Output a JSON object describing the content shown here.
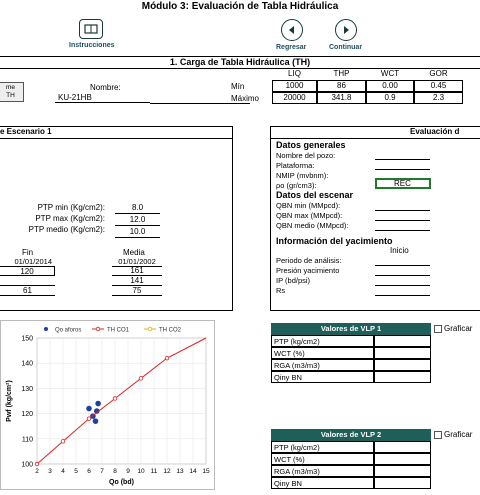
{
  "title": "Módulo 3: Evaluación de Tabla Hidráulica",
  "nav": {
    "instructions": "Instrucciones",
    "back": "Regresar",
    "next": "Continuar"
  },
  "section1": {
    "header": "1.  Carga de Tabla Hidráulica (TH)",
    "side_btn_line1": "me",
    "side_btn_line2": "TH",
    "name_label": "Nombre:",
    "name_value": "KU-21HB",
    "cols": [
      "LIQ",
      "THP",
      "WCT",
      "GOR"
    ],
    "rows": [
      {
        "label": "Mín",
        "values": [
          "1000",
          "86",
          "0.00",
          "0.45"
        ]
      },
      {
        "label": "Máximo",
        "values": [
          "20000",
          "341.8",
          "0.9",
          "2.3"
        ]
      }
    ]
  },
  "left_panel": {
    "title": "e Escenario 1",
    "ptp": [
      {
        "label": "PTP min (Kg/cm2):",
        "value": "8.0"
      },
      {
        "label": "PTP max (Kg/cm2):",
        "value": "12.0"
      },
      {
        "label": "PTP medio (Kg/cm2):",
        "value": "10.0"
      }
    ],
    "fin_label": "Fin",
    "media_label": "Media",
    "fin_date": "01/01/2014",
    "media_date": "01/01/2002",
    "fin_values": [
      "120",
      "",
      "61"
    ],
    "media_values": [
      "161",
      "141",
      "75"
    ]
  },
  "right_panel": {
    "title": "Evaluación d",
    "gen_title": "Datos generales",
    "gen_fields": [
      "Nombre del pozo:",
      "Plataforma:",
      "NMIP (mvbnm):",
      "ρo (gr/cm3):"
    ],
    "rho_value": "REC",
    "esc_title": "Datos del escenar",
    "esc_fields": [
      "QBN min (MMpcd):",
      "QBN max (MMpcd):",
      "QBN medio (MMpcd):"
    ],
    "yac_title": "Información del yacimiento",
    "inicio": "Inicio",
    "yac_fields": [
      "Periodo de análisis:",
      "Presión yacimiento",
      "IP (bd/psi)",
      "Rs"
    ]
  },
  "vlp1": {
    "title": "Valores de VLP 1",
    "graf": "Graficar",
    "rows": [
      "PTP (kg/cm2)",
      "WCT (%)",
      "RGA (m3/m3)",
      "Qiny BN"
    ]
  },
  "vlp2": {
    "title": "Valores de VLP 2",
    "graf": "Graficar",
    "rows": [
      "PTP (kg/cm2)",
      "WCT (%)",
      "RGA (m3/m3)",
      "Qiny BN"
    ]
  },
  "chart_data": {
    "type": "scatter",
    "xlabel": "Qo (bd)",
    "ylabel": "Pwf (kg/cm²)",
    "xlim": [
      2,
      15
    ],
    "ylim": [
      100,
      150
    ],
    "xticks": [
      2,
      3,
      4,
      5,
      6,
      7,
      8,
      9,
      10,
      11,
      12,
      13,
      14,
      15
    ],
    "yticks": [
      100,
      110,
      120,
      130,
      140,
      150
    ],
    "legend_position": "top",
    "series": [
      {
        "name": "Qo aforos",
        "kind": "points",
        "color": "#1f3fa0",
        "points": [
          [
            6.0,
            122
          ],
          [
            6.3,
            119
          ],
          [
            6.5,
            117
          ],
          [
            6.6,
            121
          ],
          [
            6.7,
            124
          ]
        ]
      },
      {
        "name": "TH CO1",
        "kind": "line",
        "color": "#e02020",
        "points": [
          [
            2,
            100
          ],
          [
            4,
            109
          ],
          [
            6,
            118
          ],
          [
            8,
            126
          ],
          [
            10,
            134
          ],
          [
            12,
            142
          ],
          [
            15,
            152
          ]
        ]
      },
      {
        "name": "TH CO2",
        "kind": "line",
        "color": "#d8b020",
        "points": []
      }
    ]
  }
}
